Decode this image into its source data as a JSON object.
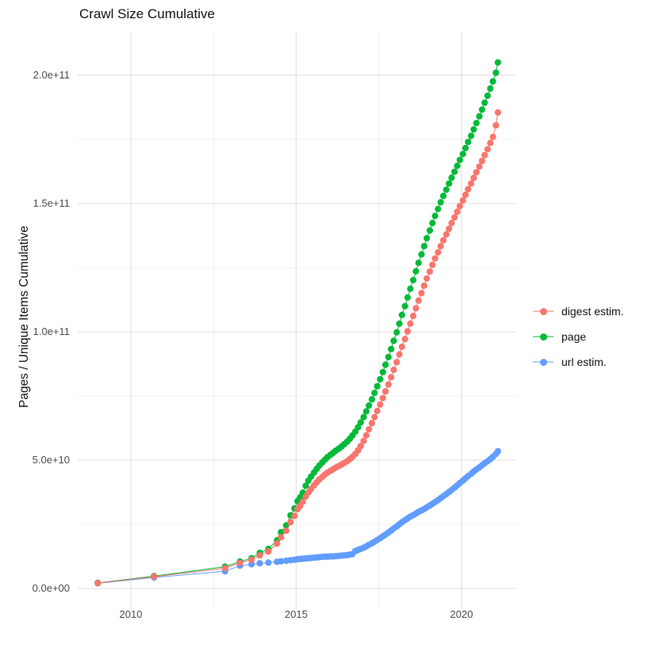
{
  "title": "Crawl Size Cumulative",
  "y_axis": {
    "label": "Pages / Unique Items Cumulative",
    "tick_labels": [
      "0.0e+00",
      "5.0e+10",
      "1.0e+11",
      "1.5e+11",
      "2.0e+11"
    ],
    "tick_values_e9": [
      0,
      50,
      100,
      150,
      200
    ],
    "minor_values_e9": [
      25,
      75,
      125,
      175
    ]
  },
  "x_axis": {
    "tick_labels": [
      "2010",
      "2015",
      "2020"
    ],
    "tick_values": [
      2010,
      2015,
      2020
    ],
    "minor_values": [
      2012.5,
      2017.5
    ]
  },
  "legend": {
    "items": [
      {
        "label": "digest estim.",
        "color": "#F8766D"
      },
      {
        "label": "page",
        "color": "#00BA38"
      },
      {
        "label": "url estim.",
        "color": "#619CFF"
      }
    ]
  },
  "chart_data": {
    "type": "line",
    "title": "Crawl Size Cumulative",
    "xlabel": "",
    "ylabel": "Pages / Unique Items Cumulative",
    "value_unit": "1e9 pages (billions)",
    "x_unit": "year",
    "xlim": [
      2008.4,
      2021.7
    ],
    "ylim_e9": [
      -8,
      217
    ],
    "grid": true,
    "legend_position": "right",
    "marker": "point",
    "series": [
      {
        "name": "page",
        "color": "#00BA38",
        "points": [
          [
            2009.0,
            2.2
          ],
          [
            2010.7,
            4.8
          ],
          [
            2012.85,
            8.5
          ],
          [
            2013.3,
            10.5
          ],
          [
            2013.65,
            11.8
          ],
          [
            2013.9,
            13.9
          ],
          [
            2014.16,
            15.4
          ],
          [
            2014.42,
            18.8
          ],
          [
            2014.54,
            21.9
          ],
          [
            2014.7,
            24.6
          ],
          [
            2014.83,
            28.5
          ],
          [
            2014.95,
            31.2
          ],
          [
            2015.04,
            34.0
          ],
          [
            2015.12,
            35.5
          ],
          [
            2015.2,
            37.3
          ],
          [
            2015.29,
            40.0
          ],
          [
            2015.37,
            42.0
          ],
          [
            2015.45,
            43.6
          ],
          [
            2015.54,
            45.2
          ],
          [
            2015.62,
            46.6
          ],
          [
            2015.7,
            47.9
          ],
          [
            2015.79,
            49.1
          ],
          [
            2015.87,
            50.2
          ],
          [
            2015.95,
            51.2
          ],
          [
            2016.04,
            52.1
          ],
          [
            2016.12,
            52.9
          ],
          [
            2016.2,
            53.7
          ],
          [
            2016.29,
            54.5
          ],
          [
            2016.37,
            55.3
          ],
          [
            2016.45,
            56.2
          ],
          [
            2016.54,
            57.2
          ],
          [
            2016.62,
            58.3
          ],
          [
            2016.7,
            59.6
          ],
          [
            2016.79,
            61.1
          ],
          [
            2016.87,
            62.8
          ],
          [
            2016.95,
            64.7
          ],
          [
            2017.04,
            66.8
          ],
          [
            2017.12,
            69.0
          ],
          [
            2017.2,
            71.3
          ],
          [
            2017.29,
            73.7
          ],
          [
            2017.37,
            76.2
          ],
          [
            2017.45,
            78.8
          ],
          [
            2017.54,
            81.5
          ],
          [
            2017.62,
            84.3
          ],
          [
            2017.7,
            87.2
          ],
          [
            2017.79,
            90.2
          ],
          [
            2017.87,
            93.3
          ],
          [
            2017.95,
            96.5
          ],
          [
            2018.04,
            99.8
          ],
          [
            2018.12,
            103.2
          ],
          [
            2018.2,
            106.6
          ],
          [
            2018.29,
            110.0
          ],
          [
            2018.37,
            113.4
          ],
          [
            2018.45,
            116.8
          ],
          [
            2018.54,
            120.2
          ],
          [
            2018.62,
            123.6
          ],
          [
            2018.7,
            126.9
          ],
          [
            2018.79,
            130.2
          ],
          [
            2018.87,
            133.4
          ],
          [
            2018.95,
            136.5
          ],
          [
            2019.04,
            139.5
          ],
          [
            2019.12,
            142.4
          ],
          [
            2019.2,
            145.2
          ],
          [
            2019.29,
            147.9
          ],
          [
            2019.37,
            150.5
          ],
          [
            2019.45,
            153.0
          ],
          [
            2019.54,
            155.4
          ],
          [
            2019.62,
            157.8
          ],
          [
            2019.7,
            160.1
          ],
          [
            2019.79,
            162.4
          ],
          [
            2019.87,
            164.7
          ],
          [
            2019.95,
            167.0
          ],
          [
            2020.04,
            169.3
          ],
          [
            2020.12,
            171.6
          ],
          [
            2020.2,
            174.0
          ],
          [
            2020.29,
            176.4
          ],
          [
            2020.37,
            178.9
          ],
          [
            2020.45,
            181.4
          ],
          [
            2020.54,
            184.0
          ],
          [
            2020.62,
            186.6
          ],
          [
            2020.7,
            189.3
          ],
          [
            2020.79,
            192.0
          ],
          [
            2020.87,
            194.8
          ],
          [
            2020.95,
            197.6
          ],
          [
            2021.04,
            201.0
          ],
          [
            2021.1,
            205.0
          ]
        ]
      },
      {
        "name": "url estim.",
        "color": "#619CFF",
        "points": [
          [
            2009.0,
            2.0
          ],
          [
            2010.7,
            4.3
          ],
          [
            2012.85,
            6.7
          ],
          [
            2013.3,
            8.9
          ],
          [
            2013.65,
            9.4
          ],
          [
            2013.9,
            9.8
          ],
          [
            2014.16,
            10.1
          ],
          [
            2014.42,
            10.4
          ],
          [
            2014.54,
            10.6
          ],
          [
            2014.7,
            10.8
          ],
          [
            2014.83,
            11.0
          ],
          [
            2014.95,
            11.2
          ],
          [
            2015.04,
            11.4
          ],
          [
            2015.12,
            11.5
          ],
          [
            2015.2,
            11.6
          ],
          [
            2015.29,
            11.7
          ],
          [
            2015.37,
            11.8
          ],
          [
            2015.45,
            11.9
          ],
          [
            2015.54,
            12.0
          ],
          [
            2015.62,
            12.1
          ],
          [
            2015.7,
            12.2
          ],
          [
            2015.79,
            12.3
          ],
          [
            2015.87,
            12.4
          ],
          [
            2015.95,
            12.4
          ],
          [
            2016.04,
            12.5
          ],
          [
            2016.12,
            12.5
          ],
          [
            2016.2,
            12.6
          ],
          [
            2016.29,
            12.7
          ],
          [
            2016.37,
            12.8
          ],
          [
            2016.45,
            12.9
          ],
          [
            2016.54,
            13.0
          ],
          [
            2016.62,
            13.2
          ],
          [
            2016.7,
            13.4
          ],
          [
            2016.79,
            14.6
          ],
          [
            2016.87,
            15.0
          ],
          [
            2016.95,
            15.4
          ],
          [
            2017.04,
            15.9
          ],
          [
            2017.12,
            16.4
          ],
          [
            2017.2,
            17.0
          ],
          [
            2017.29,
            17.6
          ],
          [
            2017.37,
            18.2
          ],
          [
            2017.45,
            18.9
          ],
          [
            2017.54,
            19.6
          ],
          [
            2017.62,
            20.3
          ],
          [
            2017.7,
            21.0
          ],
          [
            2017.79,
            21.8
          ],
          [
            2017.87,
            22.6
          ],
          [
            2017.95,
            23.4
          ],
          [
            2018.04,
            24.2
          ],
          [
            2018.12,
            25.0
          ],
          [
            2018.2,
            25.8
          ],
          [
            2018.29,
            26.6
          ],
          [
            2018.37,
            27.3
          ],
          [
            2018.45,
            28.0
          ],
          [
            2018.54,
            28.6
          ],
          [
            2018.62,
            29.2
          ],
          [
            2018.7,
            29.8
          ],
          [
            2018.79,
            30.4
          ],
          [
            2018.87,
            31.0
          ],
          [
            2018.95,
            31.6
          ],
          [
            2019.04,
            32.3
          ],
          [
            2019.12,
            33.0
          ],
          [
            2019.2,
            33.7
          ],
          [
            2019.29,
            34.4
          ],
          [
            2019.37,
            35.2
          ],
          [
            2019.45,
            36.0
          ],
          [
            2019.54,
            36.8
          ],
          [
            2019.62,
            37.6
          ],
          [
            2019.7,
            38.4
          ],
          [
            2019.79,
            39.3
          ],
          [
            2019.87,
            40.2
          ],
          [
            2019.95,
            41.1
          ],
          [
            2020.04,
            42.0
          ],
          [
            2020.12,
            42.9
          ],
          [
            2020.2,
            43.8
          ],
          [
            2020.29,
            44.7
          ],
          [
            2020.37,
            45.6
          ],
          [
            2020.45,
            46.4
          ],
          [
            2020.54,
            47.2
          ],
          [
            2020.62,
            48.0
          ],
          [
            2020.7,
            48.8
          ],
          [
            2020.79,
            49.6
          ],
          [
            2020.87,
            50.4
          ],
          [
            2020.95,
            51.3
          ],
          [
            2021.04,
            52.4
          ],
          [
            2021.1,
            53.5
          ]
        ]
      },
      {
        "name": "digest estim.",
        "color": "#F8766D",
        "points": [
          [
            2009.0,
            2.1
          ],
          [
            2010.7,
            4.6
          ],
          [
            2012.85,
            7.9
          ],
          [
            2013.3,
            10.0
          ],
          [
            2013.65,
            11.2
          ],
          [
            2013.9,
            12.9
          ],
          [
            2014.16,
            14.4
          ],
          [
            2014.42,
            17.5
          ],
          [
            2014.54,
            20.0
          ],
          [
            2014.7,
            22.5
          ],
          [
            2014.83,
            25.8
          ],
          [
            2014.95,
            28.3
          ],
          [
            2015.04,
            30.9
          ],
          [
            2015.12,
            32.2
          ],
          [
            2015.2,
            33.8
          ],
          [
            2015.29,
            35.8
          ],
          [
            2015.37,
            37.4
          ],
          [
            2015.45,
            38.8
          ],
          [
            2015.54,
            40.2
          ],
          [
            2015.62,
            41.4
          ],
          [
            2015.7,
            42.5
          ],
          [
            2015.79,
            43.5
          ],
          [
            2015.87,
            44.4
          ],
          [
            2015.95,
            45.2
          ],
          [
            2016.04,
            45.9
          ],
          [
            2016.12,
            46.5
          ],
          [
            2016.2,
            47.1
          ],
          [
            2016.29,
            47.7
          ],
          [
            2016.37,
            48.3
          ],
          [
            2016.45,
            48.9
          ],
          [
            2016.54,
            49.6
          ],
          [
            2016.62,
            50.4
          ],
          [
            2016.7,
            51.3
          ],
          [
            2016.79,
            52.4
          ],
          [
            2016.87,
            53.8
          ],
          [
            2016.95,
            55.5
          ],
          [
            2017.04,
            57.5
          ],
          [
            2017.12,
            59.7
          ],
          [
            2017.2,
            62.0
          ],
          [
            2017.29,
            64.4
          ],
          [
            2017.37,
            66.8
          ],
          [
            2017.45,
            69.2
          ],
          [
            2017.54,
            71.7
          ],
          [
            2017.62,
            74.2
          ],
          [
            2017.7,
            76.8
          ],
          [
            2017.79,
            79.5
          ],
          [
            2017.87,
            82.3
          ],
          [
            2017.95,
            85.2
          ],
          [
            2018.04,
            88.2
          ],
          [
            2018.12,
            91.2
          ],
          [
            2018.2,
            94.2
          ],
          [
            2018.29,
            97.2
          ],
          [
            2018.37,
            100.2
          ],
          [
            2018.45,
            103.2
          ],
          [
            2018.54,
            106.2
          ],
          [
            2018.62,
            109.2
          ],
          [
            2018.7,
            112.2
          ],
          [
            2018.79,
            115.1
          ],
          [
            2018.87,
            118.0
          ],
          [
            2018.95,
            120.8
          ],
          [
            2019.04,
            123.5
          ],
          [
            2019.12,
            126.1
          ],
          [
            2019.2,
            128.6
          ],
          [
            2019.29,
            131.0
          ],
          [
            2019.37,
            133.4
          ],
          [
            2019.45,
            135.7
          ],
          [
            2019.54,
            138.0
          ],
          [
            2019.62,
            140.2
          ],
          [
            2019.7,
            142.4
          ],
          [
            2019.79,
            144.6
          ],
          [
            2019.87,
            146.8
          ],
          [
            2019.95,
            149.0
          ],
          [
            2020.04,
            151.2
          ],
          [
            2020.12,
            153.4
          ],
          [
            2020.2,
            155.6
          ],
          [
            2020.29,
            157.8
          ],
          [
            2020.37,
            160.0
          ],
          [
            2020.45,
            162.2
          ],
          [
            2020.54,
            164.4
          ],
          [
            2020.62,
            166.6
          ],
          [
            2020.7,
            168.9
          ],
          [
            2020.79,
            171.2
          ],
          [
            2020.87,
            173.6
          ],
          [
            2020.95,
            176.0
          ],
          [
            2021.04,
            180.5
          ],
          [
            2021.1,
            185.5
          ]
        ]
      }
    ]
  },
  "style": {
    "grid_major_color": "#e3e3e3",
    "grid_minor_color": "#f0f0f0",
    "tick_label_color": "#4d4d4d",
    "text_color": "#131313",
    "background": "#ffffff"
  }
}
